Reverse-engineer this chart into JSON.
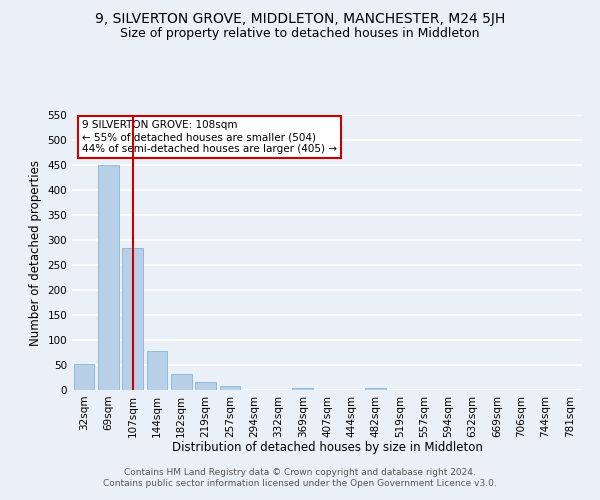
{
  "title": "9, SILVERTON GROVE, MIDDLETON, MANCHESTER, M24 5JH",
  "subtitle": "Size of property relative to detached houses in Middleton",
  "xlabel": "Distribution of detached houses by size in Middleton",
  "ylabel": "Number of detached properties",
  "categories": [
    "32sqm",
    "69sqm",
    "107sqm",
    "144sqm",
    "182sqm",
    "219sqm",
    "257sqm",
    "294sqm",
    "332sqm",
    "369sqm",
    "407sqm",
    "444sqm",
    "482sqm",
    "519sqm",
    "557sqm",
    "594sqm",
    "632sqm",
    "669sqm",
    "706sqm",
    "744sqm",
    "781sqm"
  ],
  "values": [
    53,
    450,
    285,
    78,
    32,
    17,
    9,
    0,
    0,
    5,
    0,
    0,
    4,
    0,
    0,
    0,
    0,
    0,
    0,
    0,
    0
  ],
  "bar_color": "#b8cfe8",
  "bar_edge_color": "#7aaad0",
  "vline_x_index": 2,
  "vline_color": "#cc0000",
  "annotation_text": "9 SILVERTON GROVE: 108sqm\n← 55% of detached houses are smaller (504)\n44% of semi-detached houses are larger (405) →",
  "annotation_box_facecolor": "#ffffff",
  "annotation_box_edgecolor": "#cc0000",
  "ylim": [
    0,
    550
  ],
  "yticks": [
    0,
    50,
    100,
    150,
    200,
    250,
    300,
    350,
    400,
    450,
    500,
    550
  ],
  "footer_line1": "Contains HM Land Registry data © Crown copyright and database right 2024.",
  "footer_line2": "Contains public sector information licensed under the Open Government Licence v3.0.",
  "bg_color": "#eaf0f8",
  "grid_color": "#ffffff",
  "title_fontsize": 10,
  "subtitle_fontsize": 9,
  "axis_label_fontsize": 8.5,
  "tick_fontsize": 7.5,
  "annotation_fontsize": 7.5,
  "footer_fontsize": 6.5
}
